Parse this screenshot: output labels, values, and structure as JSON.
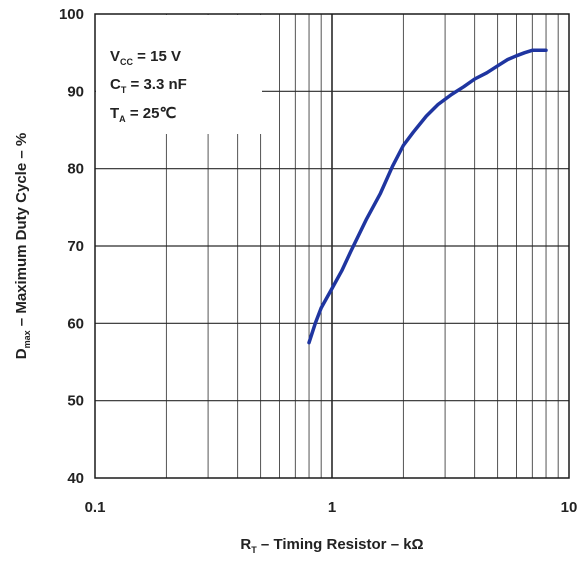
{
  "chart_data": {
    "type": "line",
    "x_scale": "log",
    "xlim": [
      0.1,
      10
    ],
    "ylim": [
      40,
      100
    ],
    "x_ticks": [
      {
        "value": 0.1,
        "label": "0.1"
      },
      {
        "value": 1,
        "label": "1"
      },
      {
        "value": 10,
        "label": "10"
      }
    ],
    "y_ticks": [
      {
        "value": 40,
        "label": "40"
      },
      {
        "value": 50,
        "label": "50"
      },
      {
        "value": 60,
        "label": "60"
      },
      {
        "value": 70,
        "label": "70"
      },
      {
        "value": 80,
        "label": "80"
      },
      {
        "value": 90,
        "label": "90"
      },
      {
        "value": 100,
        "label": "100"
      }
    ],
    "grid": true,
    "xlabel": {
      "main": "R",
      "sub": "T",
      "rest": " – Timing Resistor – kΩ"
    },
    "ylabel": {
      "main": "D",
      "sub": "max",
      "rest": " – Maximum Duty Cycle – %"
    },
    "conditions": [
      {
        "main": "V",
        "sub": "CC",
        "rest": " = 15 V"
      },
      {
        "main": "C",
        "sub": "T",
        "rest": " = 3.3 nF"
      },
      {
        "main": "T",
        "sub": "A",
        "rest": " = 25℃"
      }
    ],
    "series": [
      {
        "color": "#1f35a0",
        "x": [
          0.8,
          0.85,
          0.9,
          1.0,
          1.1,
          1.2,
          1.4,
          1.6,
          1.8,
          2.0,
          2.2,
          2.5,
          2.8,
          3.2,
          3.6,
          4.0,
          4.5,
          5.0,
          5.5,
          6.0,
          6.5,
          7.0,
          7.5,
          8.0
        ],
        "y": [
          57.5,
          60.0,
          62.0,
          64.5,
          66.8,
          69.3,
          73.5,
          76.8,
          80.3,
          83.0,
          84.7,
          86.8,
          88.3,
          89.6,
          90.6,
          91.6,
          92.4,
          93.3,
          94.1,
          94.6,
          95.0,
          95.3,
          95.3,
          95.3
        ]
      }
    ]
  }
}
